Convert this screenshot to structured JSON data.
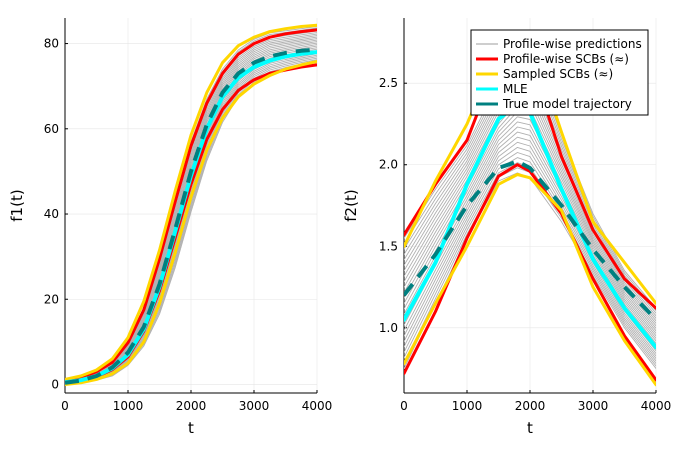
{
  "chart_data": [
    {
      "type": "line",
      "xlabel": "t",
      "ylabel": "f1(t)",
      "xlim": [
        0,
        4000
      ],
      "ylim": [
        -2,
        86
      ],
      "xticks": [
        0,
        1000,
        2000,
        3000,
        4000
      ],
      "yticks": [
        0,
        20,
        40,
        60,
        80
      ],
      "grid": true,
      "x": [
        0,
        250,
        500,
        750,
        1000,
        1250,
        1500,
        1750,
        2000,
        2250,
        2500,
        2750,
        3000,
        3250,
        3500,
        3750,
        4000
      ],
      "series": [
        {
          "name": "Profile-wise predictions",
          "color": "#b0b0b0",
          "role": "fan",
          "lower": [
            0.1,
            0.5,
            1.0,
            2.0,
            4.5,
            9.0,
            16.5,
            27.5,
            40.5,
            52.5,
            61.5,
            67.5,
            71.0,
            73.0,
            74.0,
            74.8,
            75.5
          ],
          "upper": [
            1.0,
            1.8,
            3.2,
            5.5,
            10.0,
            18.0,
            30.0,
            44.0,
            57.0,
            67.0,
            74.0,
            78.5,
            81.0,
            82.5,
            83.0,
            83.5,
            84.0
          ]
        },
        {
          "name": "Profile-wise SCBs (≈)",
          "color": "#ff0000",
          "width": 3,
          "lower": [
            0.2,
            0.8,
            1.8,
            3.5,
            6.5,
            12.5,
            22.0,
            34.5,
            47.0,
            57.5,
            64.5,
            69.0,
            71.5,
            73.0,
            73.8,
            74.5,
            75.0
          ],
          "upper": [
            0.8,
            1.6,
            3.0,
            5.2,
            9.8,
            17.5,
            29.5,
            43.0,
            56.0,
            66.0,
            73.0,
            77.5,
            80.0,
            81.5,
            82.3,
            82.8,
            83.2
          ]
        },
        {
          "name": "Sampled SCBs (≈)",
          "color": "#ffd700",
          "width": 3,
          "lower": [
            0.0,
            0.4,
            1.2,
            2.5,
            5.0,
            10.0,
            19.0,
            31.0,
            44.0,
            55.0,
            62.5,
            67.5,
            70.5,
            72.5,
            74.0,
            75.0,
            75.8
          ],
          "upper": [
            1.2,
            2.0,
            3.4,
            6.0,
            11.0,
            19.5,
            31.5,
            45.5,
            58.5,
            68.5,
            75.5,
            79.5,
            81.5,
            82.8,
            83.5,
            84.0,
            84.3
          ]
        },
        {
          "name": "MLE",
          "color": "#00ffff",
          "width": 4,
          "values": [
            0.5,
            1.0,
            2.0,
            3.8,
            7.0,
            13.0,
            23.0,
            36.0,
            49.0,
            60.0,
            67.5,
            72.0,
            74.5,
            76.0,
            77.0,
            77.6,
            78.0
          ]
        },
        {
          "name": "True model trajectory",
          "color": "#008080",
          "width": 4,
          "dash": true,
          "values": [
            0.4,
            0.9,
            2.0,
            4.0,
            7.5,
            13.5,
            23.5,
            36.5,
            50.0,
            61.0,
            68.5,
            73.0,
            75.5,
            77.0,
            77.8,
            78.3,
            78.6
          ]
        }
      ]
    },
    {
      "type": "line",
      "xlabel": "t",
      "ylabel": "f2(t)",
      "xlim": [
        0,
        4000
      ],
      "ylim": [
        0.6,
        2.9
      ],
      "xticks": [
        0,
        1000,
        2000,
        3000,
        4000
      ],
      "yticks": [
        1.0,
        1.5,
        2.0,
        2.5
      ],
      "yticklabels": [
        "1.0",
        "1.5",
        "2.0",
        "2.5"
      ],
      "grid": true,
      "legend": "top-right",
      "x": [
        0,
        500,
        1000,
        1500,
        1800,
        2000,
        2500,
        3000,
        3500,
        4000
      ],
      "series": [
        {
          "name": "Profile-wise predictions",
          "color": "#b0b0b0",
          "role": "fan",
          "lower": [
            0.75,
            1.15,
            1.55,
            1.9,
            1.95,
            1.92,
            1.65,
            1.32,
            1.0,
            0.75
          ],
          "upper": [
            1.55,
            1.85,
            2.12,
            2.5,
            2.7,
            2.7,
            2.18,
            1.7,
            1.35,
            1.12
          ]
        },
        {
          "name": "Profile-wise SCBs (≈)",
          "color": "#ff0000",
          "width": 3,
          "lower": [
            0.72,
            1.1,
            1.55,
            1.93,
            2.0,
            1.96,
            1.7,
            1.3,
            0.95,
            0.68
          ],
          "upper": [
            1.57,
            1.88,
            2.15,
            2.65,
            2.75,
            2.65,
            2.05,
            1.6,
            1.3,
            1.12
          ]
        },
        {
          "name": "Sampled SCBs (≈)",
          "color": "#ffd700",
          "width": 3,
          "lower": [
            0.78,
            1.15,
            1.5,
            1.88,
            1.94,
            1.92,
            1.72,
            1.25,
            0.92,
            0.65
          ],
          "upper": [
            1.5,
            1.9,
            2.25,
            2.7,
            2.82,
            2.78,
            2.2,
            1.65,
            1.4,
            1.15
          ]
        },
        {
          "name": "MLE",
          "color": "#00ffff",
          "width": 4,
          "values": [
            1.05,
            1.4,
            1.88,
            2.28,
            2.37,
            2.32,
            1.85,
            1.42,
            1.12,
            0.88
          ]
        },
        {
          "name": "True model trajectory",
          "color": "#008080",
          "width": 4,
          "dash": true,
          "values": [
            1.2,
            1.45,
            1.75,
            1.98,
            2.02,
            1.98,
            1.75,
            1.48,
            1.25,
            1.05
          ]
        }
      ]
    }
  ]
}
